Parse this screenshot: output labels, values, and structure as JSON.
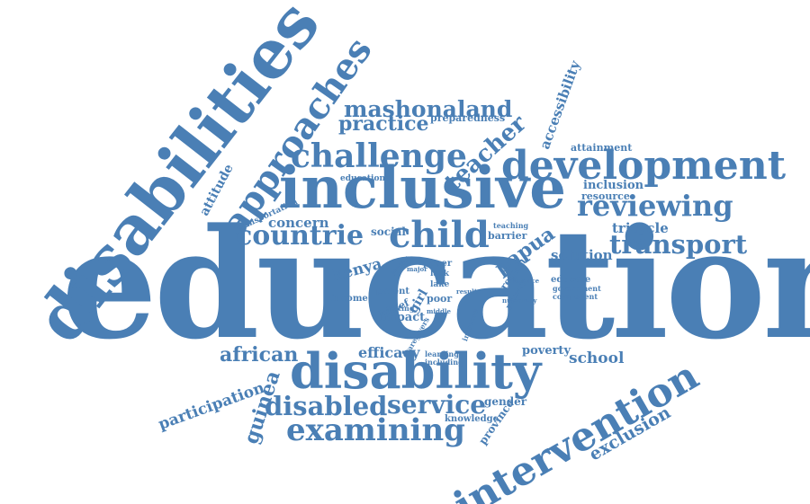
{
  "theme": {
    "word_color": "#4a7fb5",
    "background": "#ffffff"
  },
  "words": {
    "education": "education",
    "disabilities": "disabilities",
    "inclusive": "inclusive",
    "disability": "disability",
    "intervention": "intervention",
    "development": "development",
    "approaches": "approaches",
    "challenge": "challenge",
    "child": "child",
    "countrie": "countrie",
    "examining": "examining",
    "reviewing": "reviewing",
    "transport": "transport",
    "disabled": "disabled",
    "service": "service",
    "mashonaland": "mashonaland",
    "practice": "practice",
    "teacher": "teacher",
    "african": "african",
    "guinea": "guinea",
    "participation": "participation",
    "exclusion": "exclusion",
    "papua": "papua",
    "kenya": "kenya",
    "concern": "concern",
    "attitude": "attitude",
    "accessibility": "accessibility",
    "preparedness": "preparedness",
    "school": "school",
    "poverty": "poverty",
    "efficacy": "efficacy",
    "impact": "impact",
    "solution": "solution",
    "tricycle": "tricycle",
    "inclusion": "inclusion",
    "resource": "resource",
    "attainment": "attainment",
    "gender": "gender",
    "knowledge": "knowledge",
    "province": "province",
    "social": "social",
    "barrier": "barrier",
    "region": "region",
    "educate": "educate",
    "government": "government",
    "component": "component",
    "parent": "parent",
    "belief": "belief",
    "girl": "girl",
    "poor": "poor",
    "setting": "setting",
    "lack": "lack",
    "lake": "lake",
    "paper": "paper",
    "income": "income",
    "learning": "learning",
    "including": "including",
    "caregivers": "caregivers",
    "transportation": "transportation",
    "educational": "educational",
    "teaching": "teaching",
    "result": "result",
    "numeracy": "numeracy",
    "primary": "primary",
    "increase": "increase",
    "middle": "middle",
    "distance": "distance",
    "project": "project",
    "major": "major"
  }
}
